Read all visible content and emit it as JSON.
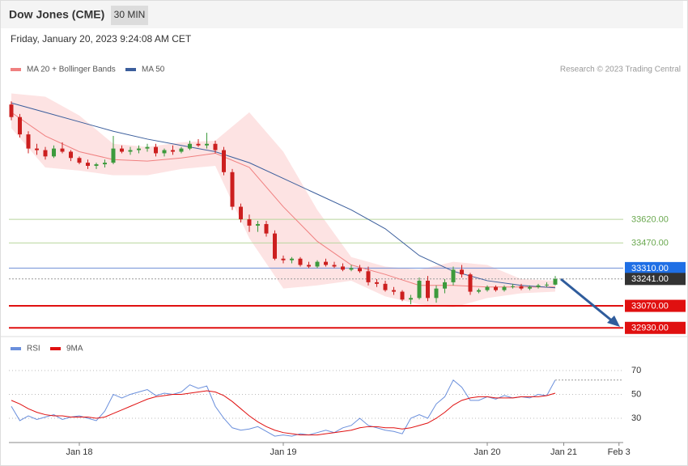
{
  "header": {
    "title": "Dow Jones (CME)",
    "interval": "30 MIN",
    "date": "Friday, January 20, 2023 9:24:08 AM CET",
    "credit": "Research © 2023 Trading Central"
  },
  "chart_data": [
    {
      "type": "candlestick",
      "x": [
        0,
        1,
        2,
        3,
        4,
        5,
        6,
        7,
        8,
        9,
        10,
        11,
        12,
        13,
        14,
        15,
        16,
        17,
        18,
        19,
        20,
        21,
        22,
        23,
        24,
        25,
        26,
        27,
        28,
        29,
        30,
        31,
        32,
        33,
        34,
        35,
        36,
        37,
        38,
        39,
        40,
        41,
        42,
        43,
        44,
        45,
        46,
        47,
        48,
        49,
        50,
        51,
        52,
        53,
        54,
        55,
        56,
        57,
        58,
        59,
        60,
        61,
        62,
        63,
        64
      ],
      "open": [
        34350,
        34270,
        34160,
        34070,
        34060,
        34020,
        34070,
        34050,
        34010,
        33980,
        33960,
        33970,
        33980,
        34070,
        34050,
        34060,
        34070,
        34080,
        34040,
        34060,
        34050,
        34070,
        34100,
        34090,
        34100,
        34060,
        33920,
        33700,
        33620,
        33580,
        33590,
        33530,
        33370,
        33360,
        33370,
        33330,
        33320,
        33350,
        33330,
        33320,
        33300,
        33310,
        33290,
        33220,
        33210,
        33170,
        33160,
        33110,
        33120,
        33230,
        33120,
        33180,
        33220,
        33300,
        33270,
        33160,
        33170,
        33190,
        33170,
        33190,
        33195,
        33180,
        33190,
        33200,
        33205
      ],
      "high": [
        34370,
        34290,
        34180,
        34100,
        34080,
        34090,
        34110,
        34060,
        34020,
        34000,
        33980,
        34000,
        34150,
        34090,
        34080,
        34090,
        34100,
        34100,
        34070,
        34090,
        34080,
        34120,
        34130,
        34170,
        34120,
        34080,
        33940,
        33720,
        33650,
        33610,
        33610,
        33550,
        33390,
        33380,
        33380,
        33350,
        33360,
        33370,
        33350,
        33340,
        33330,
        33330,
        33320,
        33240,
        33230,
        33190,
        33170,
        33140,
        33250,
        33260,
        33200,
        33240,
        33320,
        33330,
        33280,
        33180,
        33200,
        33200,
        33200,
        33210,
        33210,
        33200,
        33210,
        33220,
        33260
      ],
      "low": [
        34250,
        34140,
        34040,
        34030,
        34000,
        34010,
        34040,
        33990,
        33970,
        33940,
        33940,
        33950,
        33970,
        34040,
        34030,
        34040,
        34050,
        34020,
        34020,
        34030,
        34040,
        34060,
        34080,
        34070,
        34040,
        33900,
        33680,
        33600,
        33540,
        33540,
        33510,
        33360,
        33340,
        33340,
        33320,
        33310,
        33310,
        33320,
        33310,
        33290,
        33290,
        33280,
        33200,
        33190,
        33160,
        33140,
        33100,
        33080,
        33110,
        33100,
        33090,
        33150,
        33200,
        33250,
        33140,
        33150,
        33160,
        33160,
        33160,
        33180,
        33170,
        33170,
        33180,
        33190,
        33200
      ],
      "close": [
        34270,
        34160,
        34070,
        34060,
        34020,
        34070,
        34050,
        34010,
        33980,
        33960,
        33970,
        33980,
        34070,
        34050,
        34060,
        34070,
        34080,
        34040,
        34060,
        34050,
        34070,
        34100,
        34090,
        34100,
        34060,
        33920,
        33700,
        33620,
        33580,
        33590,
        33530,
        33370,
        33360,
        33370,
        33330,
        33320,
        33350,
        33330,
        33320,
        33300,
        33310,
        33290,
        33220,
        33210,
        33170,
        33160,
        33110,
        33120,
        33230,
        33120,
        33180,
        33220,
        33300,
        33270,
        33160,
        33170,
        33190,
        33170,
        33190,
        33195,
        33180,
        33190,
        33200,
        33205,
        33241
      ],
      "up_color": "#3c9a3c",
      "down_color": "#cc1f1f",
      "series": [
        {
          "name": "MA 20 + Bollinger Bands",
          "color": "#f08080",
          "band_color": "#fde3e3",
          "x": [
            0,
            4,
            8,
            12,
            16,
            20,
            24,
            28,
            32,
            36,
            40,
            44,
            48,
            52,
            56,
            60,
            64
          ],
          "values": [
            34300,
            34150,
            34050,
            34000,
            33990,
            34010,
            34040,
            33950,
            33700,
            33480,
            33330,
            33270,
            33200,
            33200,
            33190,
            33190,
            33190
          ],
          "upper": [
            34420,
            34400,
            34280,
            34100,
            34080,
            34110,
            34120,
            34300,
            34050,
            33680,
            33380,
            33320,
            33300,
            33350,
            33330,
            33240,
            33230
          ],
          "lower": [
            34200,
            33950,
            33930,
            33900,
            33900,
            33940,
            33960,
            33500,
            33180,
            33200,
            33230,
            33130,
            33080,
            33060,
            33120,
            33150,
            33160
          ]
        },
        {
          "name": "MA 50",
          "color": "#3b5e9c",
          "x": [
            0,
            4,
            8,
            12,
            16,
            20,
            24,
            28,
            32,
            36,
            40,
            44,
            48,
            52,
            56,
            60,
            64
          ],
          "values": [
            34360,
            34300,
            34240,
            34180,
            34130,
            34090,
            34050,
            33980,
            33880,
            33780,
            33680,
            33560,
            33390,
            33290,
            33230,
            33200,
            33185
          ]
        }
      ],
      "levels": [
        {
          "value": 33620,
          "label": "33620.00",
          "color": "#b7d59c",
          "text_color": "#6aa84f",
          "style": "thin"
        },
        {
          "value": 33470,
          "label": "33470.00",
          "color": "#b7d59c",
          "text_color": "#6aa84f",
          "style": "thin"
        },
        {
          "value": 33310,
          "label": "33310.00",
          "color": "#6f8fd6",
          "text_color": "#ffffff",
          "fill": "#1f6fe5",
          "style": "thin"
        },
        {
          "value": 33241,
          "label": "33241.00",
          "color": "#999999",
          "text_color": "#ffffff",
          "fill": "#333333",
          "style": "dotted"
        },
        {
          "value": 33070,
          "label": "33070.00",
          "color": "#e01010",
          "text_color": "#ffffff",
          "fill": "#e01010",
          "style": "thick"
        },
        {
          "value": 32930,
          "label": "32930.00",
          "color": "#e01010",
          "text_color": "#ffffff",
          "fill": "#e01010",
          "style": "thick"
        }
      ],
      "ylim": [
        32880,
        34500
      ],
      "xlim": [
        0,
        72
      ],
      "xticks": [
        {
          "value": 8,
          "label": "Jan 18"
        },
        {
          "value": 32,
          "label": "Jan 19"
        },
        {
          "value": 56,
          "label": "Jan 20"
        },
        {
          "value": 65,
          "label": "Jan 21"
        },
        {
          "value": 71.5,
          "label": "Feb 3"
        }
      ]
    },
    {
      "type": "line",
      "series": [
        {
          "name": "RSI",
          "color": "#6a8fdc",
          "values": [
            40,
            28,
            32,
            29,
            31,
            33,
            29,
            31,
            32,
            30,
            28,
            36,
            50,
            47,
            50,
            52,
            54,
            49,
            51,
            50,
            52,
            58,
            55,
            57,
            40,
            30,
            22,
            20,
            21,
            23,
            19,
            15,
            16,
            15,
            17,
            16,
            18,
            20,
            18,
            22,
            24,
            30,
            24,
            22,
            20,
            19,
            17,
            30,
            33,
            30,
            42,
            48,
            62,
            56,
            45,
            45,
            48,
            46,
            49,
            47,
            48,
            47,
            50,
            49,
            62
          ]
        },
        {
          "name": "9MA",
          "color": "#e01010",
          "values": [
            45,
            42,
            38,
            35,
            33,
            32,
            32,
            31,
            31,
            31,
            30,
            31,
            34,
            37,
            40,
            43,
            46,
            48,
            49,
            50,
            50,
            51,
            52,
            53,
            52,
            49,
            44,
            38,
            32,
            27,
            23,
            20,
            18,
            17,
            16,
            16,
            16,
            17,
            18,
            19,
            20,
            22,
            23,
            23,
            22,
            22,
            21,
            22,
            24,
            26,
            30,
            35,
            41,
            45,
            47,
            48,
            48,
            47,
            47,
            47,
            48,
            48,
            48,
            49,
            51
          ]
        }
      ],
      "ylim": [
        10,
        92
      ],
      "yticks": [
        70,
        50,
        30
      ]
    }
  ]
}
